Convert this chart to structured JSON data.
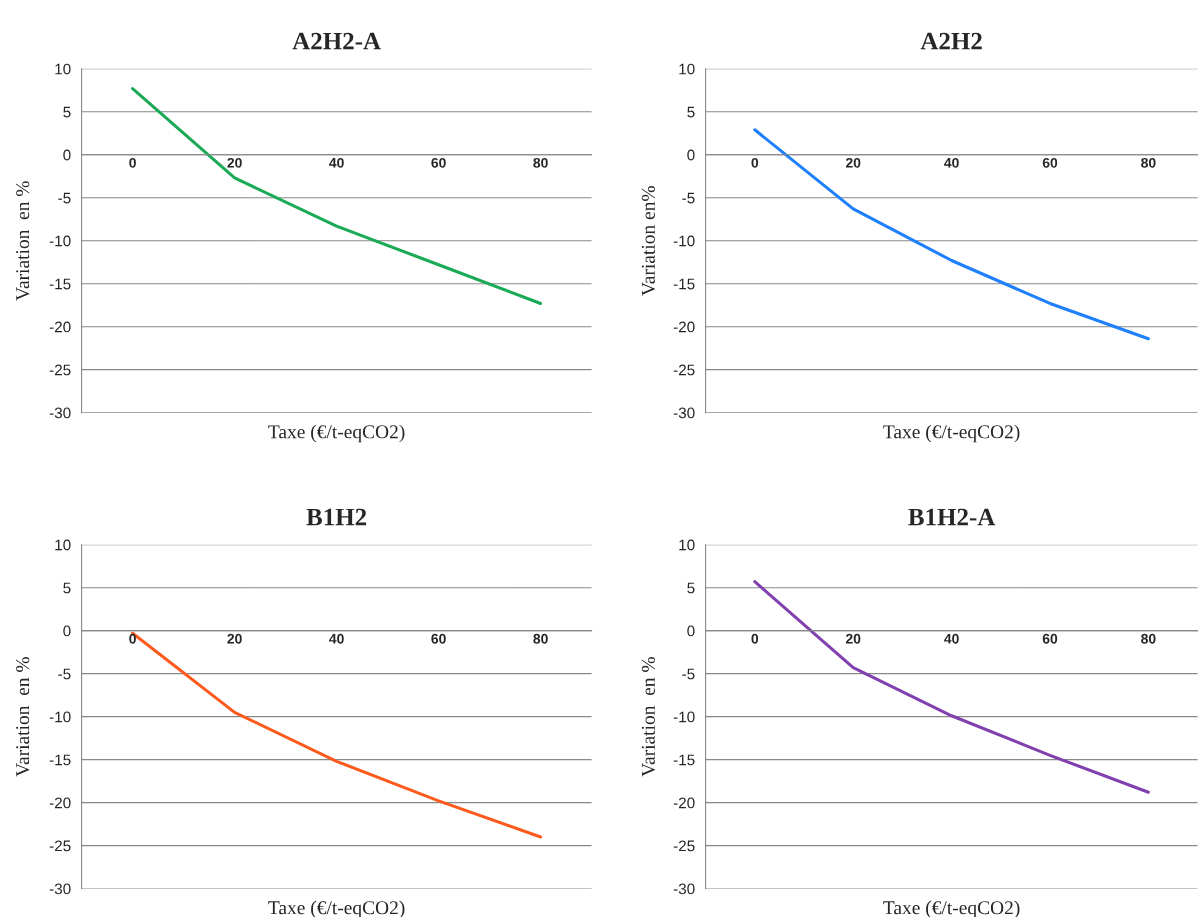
{
  "chart_data": [
    {
      "type": "line",
      "title": "A2H2-A",
      "xlabel": "Taxe (€/t-eqCO2)",
      "ylabel": "Variation  en %",
      "categories": [
        "0",
        "20",
        "40",
        "60",
        "80"
      ],
      "series": [
        {
          "color": "#1aaa55",
          "values": [
            7.7,
            -2.7,
            -8.3,
            -12.8,
            -17.3
          ]
        }
      ],
      "ylim": [
        -30,
        10
      ],
      "yticks": [
        -30,
        -25,
        -20,
        -15,
        -10,
        -5,
        0,
        5,
        10
      ],
      "grid": "y"
    },
    {
      "type": "line",
      "title": "A2H2",
      "xlabel": "Taxe (€/t-eqCO2)",
      "ylabel": "Variation en%",
      "categories": [
        "0",
        "20",
        "40",
        "60",
        "80"
      ],
      "series": [
        {
          "color": "#1e7fff",
          "values": [
            2.9,
            -6.3,
            -12.3,
            -17.3,
            -21.4
          ]
        }
      ],
      "ylim": [
        -30,
        10
      ],
      "yticks": [
        -30,
        -25,
        -20,
        -15,
        -10,
        -5,
        0,
        5,
        10
      ],
      "grid": "y"
    },
    {
      "type": "line",
      "title": "B1H2",
      "xlabel": "Taxe (€/t-eqCO2)",
      "ylabel": "Variation  en %",
      "categories": [
        "0",
        "20",
        "40",
        "60",
        "80"
      ],
      "series": [
        {
          "color": "#ff5a1e",
          "values": [
            -0.3,
            -9.5,
            -15.2,
            -19.8,
            -24.0
          ]
        }
      ],
      "ylim": [
        -30,
        10
      ],
      "yticks": [
        -30,
        -25,
        -20,
        -15,
        -10,
        -5,
        0,
        5,
        10
      ],
      "grid": "y"
    },
    {
      "type": "line",
      "title": "B1H2-A",
      "xlabel": "Taxe (€/t-eqCO2)",
      "ylabel": "Variation  en %",
      "categories": [
        "0",
        "20",
        "40",
        "60",
        "80"
      ],
      "series": [
        {
          "color": "#8040b0",
          "values": [
            5.7,
            -4.3,
            -9.9,
            -14.5,
            -18.8
          ]
        }
      ],
      "ylim": [
        -30,
        10
      ],
      "yticks": [
        -30,
        -25,
        -20,
        -15,
        -10,
        -5,
        0,
        5,
        10
      ],
      "grid": "y"
    }
  ]
}
